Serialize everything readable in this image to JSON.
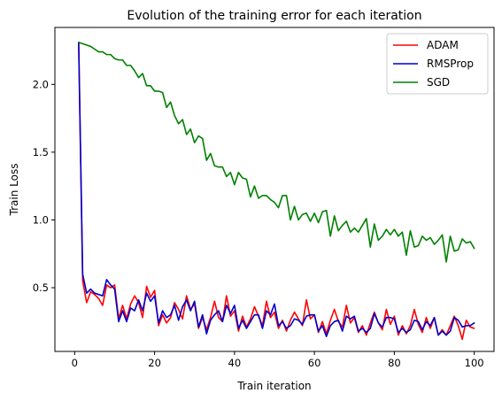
{
  "chart_data": {
    "type": "line",
    "title": "Evolution of the training error for each iteration",
    "xlabel": "Train iteration",
    "ylabel": "Train Loss",
    "xlim": [
      -4.95,
      104.95
    ],
    "ylim": [
      0.03,
      2.42
    ],
    "xticks": [
      0,
      20,
      40,
      60,
      80,
      100
    ],
    "yticks": [
      0.5,
      1.0,
      1.5,
      2.0
    ],
    "xtick_labels": [
      "0",
      "20",
      "40",
      "60",
      "80",
      "100"
    ],
    "ytick_labels": [
      "0.5",
      "1.0",
      "1.5",
      "2.0"
    ],
    "grid": false,
    "legend_position": "top-right",
    "x": [
      1,
      2,
      3,
      4,
      5,
      6,
      7,
      8,
      9,
      10,
      11,
      12,
      13,
      14,
      15,
      16,
      17,
      18,
      19,
      20,
      21,
      22,
      23,
      24,
      25,
      26,
      27,
      28,
      29,
      30,
      31,
      32,
      33,
      34,
      35,
      36,
      37,
      38,
      39,
      40,
      41,
      42,
      43,
      44,
      45,
      46,
      47,
      48,
      49,
      50,
      51,
      52,
      53,
      54,
      55,
      56,
      57,
      58,
      59,
      60,
      61,
      62,
      63,
      64,
      65,
      66,
      67,
      68,
      69,
      70,
      71,
      72,
      73,
      74,
      75,
      76,
      77,
      78,
      79,
      80,
      81,
      82,
      83,
      84,
      85,
      86,
      87,
      88,
      89,
      90,
      91,
      92,
      93,
      94,
      95,
      96,
      97,
      98,
      99,
      100
    ],
    "series": [
      {
        "name": "ADAM",
        "color": "#ff0000",
        "values": [
          2.31,
          0.55,
          0.39,
          0.47,
          0.45,
          0.42,
          0.37,
          0.52,
          0.5,
          0.52,
          0.27,
          0.37,
          0.27,
          0.38,
          0.44,
          0.39,
          0.28,
          0.51,
          0.43,
          0.48,
          0.22,
          0.3,
          0.24,
          0.28,
          0.39,
          0.34,
          0.27,
          0.44,
          0.34,
          0.38,
          0.2,
          0.28,
          0.19,
          0.28,
          0.4,
          0.28,
          0.25,
          0.44,
          0.29,
          0.33,
          0.18,
          0.29,
          0.21,
          0.27,
          0.36,
          0.29,
          0.22,
          0.4,
          0.28,
          0.32,
          0.2,
          0.26,
          0.18,
          0.26,
          0.32,
          0.27,
          0.22,
          0.41,
          0.27,
          0.3,
          0.17,
          0.25,
          0.16,
          0.26,
          0.34,
          0.25,
          0.21,
          0.37,
          0.24,
          0.28,
          0.17,
          0.22,
          0.15,
          0.24,
          0.32,
          0.24,
          0.19,
          0.34,
          0.23,
          0.29,
          0.15,
          0.22,
          0.16,
          0.22,
          0.34,
          0.23,
          0.17,
          0.28,
          0.2,
          0.28,
          0.15,
          0.19,
          0.15,
          0.22,
          0.29,
          0.22,
          0.12,
          0.26,
          0.21,
          0.2
        ]
      },
      {
        "name": "RMSProp",
        "color": "#0000cc",
        "values": [
          2.31,
          0.6,
          0.46,
          0.49,
          0.46,
          0.45,
          0.44,
          0.56,
          0.52,
          0.49,
          0.25,
          0.33,
          0.25,
          0.35,
          0.33,
          0.41,
          0.33,
          0.46,
          0.4,
          0.44,
          0.24,
          0.33,
          0.28,
          0.3,
          0.37,
          0.26,
          0.36,
          0.41,
          0.33,
          0.4,
          0.21,
          0.3,
          0.16,
          0.26,
          0.3,
          0.33,
          0.25,
          0.37,
          0.31,
          0.37,
          0.2,
          0.26,
          0.2,
          0.25,
          0.3,
          0.3,
          0.2,
          0.33,
          0.3,
          0.38,
          0.22,
          0.25,
          0.2,
          0.22,
          0.27,
          0.26,
          0.23,
          0.29,
          0.3,
          0.3,
          0.18,
          0.22,
          0.14,
          0.22,
          0.25,
          0.26,
          0.18,
          0.29,
          0.27,
          0.29,
          0.18,
          0.2,
          0.17,
          0.2,
          0.31,
          0.24,
          0.21,
          0.28,
          0.28,
          0.27,
          0.17,
          0.2,
          0.17,
          0.19,
          0.26,
          0.25,
          0.19,
          0.25,
          0.22,
          0.28,
          0.15,
          0.18,
          0.15,
          0.18,
          0.28,
          0.26,
          0.21,
          0.22,
          0.22,
          0.24
        ]
      },
      {
        "name": "SGD",
        "color": "#008000",
        "values": [
          2.31,
          2.3,
          2.29,
          2.28,
          2.26,
          2.24,
          2.24,
          2.22,
          2.22,
          2.19,
          2.18,
          2.18,
          2.14,
          2.14,
          2.1,
          2.05,
          2.08,
          1.99,
          1.99,
          1.95,
          1.95,
          1.94,
          1.83,
          1.87,
          1.77,
          1.71,
          1.74,
          1.63,
          1.67,
          1.57,
          1.62,
          1.6,
          1.44,
          1.49,
          1.4,
          1.39,
          1.39,
          1.32,
          1.35,
          1.26,
          1.35,
          1.31,
          1.3,
          1.17,
          1.25,
          1.16,
          1.18,
          1.18,
          1.15,
          1.13,
          1.09,
          1.18,
          1.18,
          1.0,
          1.1,
          1.0,
          1.04,
          1.05,
          0.99,
          1.05,
          0.98,
          1.06,
          1.07,
          0.88,
          1.03,
          0.92,
          0.96,
          0.99,
          0.91,
          0.94,
          0.91,
          0.96,
          1.01,
          0.8,
          0.97,
          0.85,
          0.88,
          0.93,
          0.89,
          0.93,
          0.88,
          0.91,
          0.74,
          0.92,
          0.8,
          0.81,
          0.88,
          0.85,
          0.87,
          0.82,
          0.85,
          0.89,
          0.69,
          0.88,
          0.77,
          0.78,
          0.86,
          0.83,
          0.84,
          0.79
        ]
      }
    ]
  }
}
